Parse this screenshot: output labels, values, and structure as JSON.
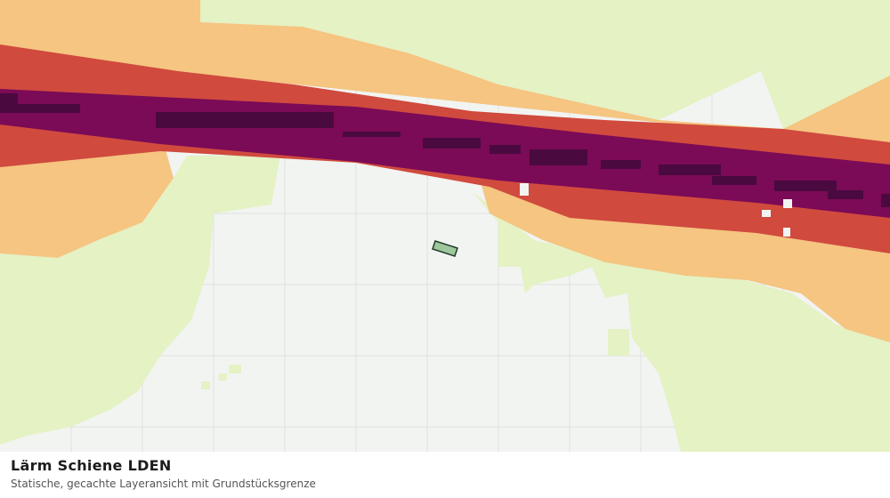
{
  "caption": {
    "title": "Lärm Schiene LDEN",
    "subtitle": "Statische, gecachte Layeransicht mit Grundstücksgrenze"
  }
}
